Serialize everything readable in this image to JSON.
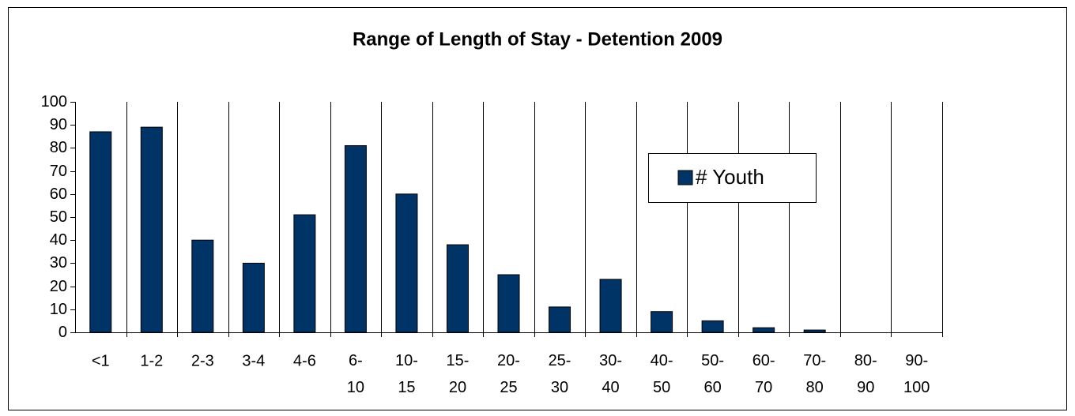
{
  "chart_data": {
    "type": "bar",
    "title": "Range of Length of Stay - Detention 2009",
    "categories": [
      "<1",
      "1-2",
      "2-3",
      "3-4",
      "4-6",
      "6-10",
      "10-15",
      "15-20",
      "20-25",
      "25-30",
      "30-40",
      "40-50",
      "50-60",
      "60-70",
      "70-80",
      "80-90",
      "90-100"
    ],
    "series": [
      {
        "name": "# Youth",
        "color": "#003366",
        "values": [
          87,
          89,
          40,
          30,
          51,
          81,
          60,
          38,
          25,
          11,
          23,
          9,
          5,
          2,
          1,
          0,
          0
        ]
      }
    ],
    "ylim": [
      0,
      100
    ],
    "yticks": [
      0,
      10,
      20,
      30,
      40,
      50,
      60,
      70,
      80,
      90,
      100
    ],
    "grid": true,
    "legend": "upper right"
  }
}
